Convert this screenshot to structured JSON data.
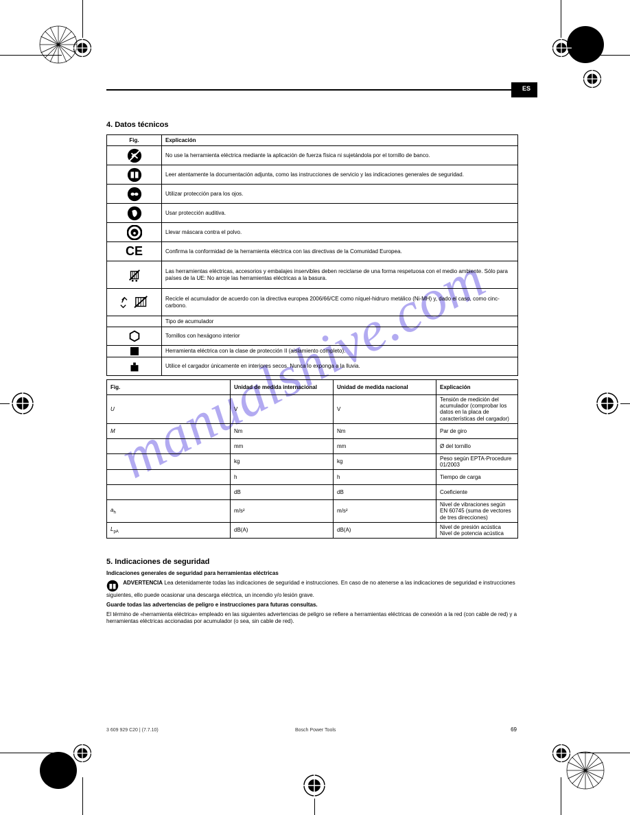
{
  "header": {
    "lang_tag": "ES"
  },
  "title_section": "4. Datos técnicos",
  "symbols_table": {
    "header": {
      "col1": "Fig.",
      "col2": "Explicación"
    },
    "rows": [
      {
        "icon": "no-hands",
        "text": "No use la herramienta eléctrica mediante la aplicación de fuerza física ni sujetándola por el tornillo de banco.",
        "tall": false
      },
      {
        "icon": "manual",
        "text": "Leer atentamente la documentación adjunta, como las instrucciones de servicio y las indicaciones generales de seguridad.",
        "tall": false
      },
      {
        "icon": "goggles",
        "text": "Utilizar protección para los ojos.",
        "tall": false
      },
      {
        "icon": "ear",
        "text": "Usar protección auditiva.",
        "tall": false
      },
      {
        "icon": "mask",
        "text": "Llevar máscara contra el polvo.",
        "tall": false
      },
      {
        "icon": "ce",
        "text": "Confirma la conformidad de la herramienta eléctrica con las directivas de la Comunidad Europea.",
        "tall": false
      },
      {
        "icon": "weee",
        "text": "Las herramientas eléctricas, accesorios y embalajes inservibles deben reciclarse de una forma respetuosa con el medio ambiente. Sólo para países de la UE: No arroje las herramientas eléctricas a la basura.",
        "tall": true
      },
      {
        "icon": "battery-recycle",
        "text": "Recicle el acumulador de acuerdo con la directiva europea 2006/66/CE como níquel-hidruro metálico (Ni-MH) y, dado el caso, como cinc-carbono.",
        "tall": true
      },
      {
        "icon": "",
        "text": "Tipo de acumulador",
        "thin": true
      },
      {
        "icon": "hex",
        "text": "Tornillos con hexágono interior",
        "thin": true
      },
      {
        "icon": "square",
        "text": "Herramienta eléctrica con la clase de protección II (aislamiento completo).",
        "thin": true
      },
      {
        "icon": "charger",
        "text": "Utilice el cargador únicamente en interiores secos. Nunca lo exponga a la lluvia.",
        "thin": true
      }
    ]
  },
  "specs_table": {
    "header": {
      "col1": "Fig.",
      "col2": "Unidad de medida internacional",
      "col3": "Unidad de medida nacional",
      "col4": "Explicación"
    },
    "rows": [
      {
        "sym": "U",
        "unit_intl": "V",
        "unit_nat": "V",
        "desc": "Tensión de medición del acumulador (comprobar los datos en la placa de características del cargador)"
      },
      {
        "sym": "M",
        "unit_intl": "Nm",
        "unit_nat": "Nm",
        "desc": "Par de giro"
      },
      {
        "sym": "",
        "unit_intl": "mm",
        "unit_nat": "mm",
        "desc": "Ø del tornillo"
      },
      {
        "sym": "",
        "unit_intl": "kg",
        "unit_nat": "kg",
        "desc": "Peso según EPTA-Procedure 01/2003"
      },
      {
        "sym": "",
        "unit_intl": "h",
        "unit_nat": "h",
        "desc": "Tiempo de carga"
      },
      {
        "sym": "",
        "unit_intl": "dB",
        "unit_nat": "dB",
        "desc": "Coeficiente"
      },
      {
        "sym": "a",
        "sub": "h",
        "unit_intl": "m/s²",
        "unit_nat": "m/s²",
        "desc": "Nivel de vibraciones según EN 60745 (suma de vectores de tres direcciones)"
      },
      {
        "sym": "L",
        "sub": "pA",
        "unit_intl": "dB(A)",
        "unit_nat": "dB(A)",
        "desc": "Nivel de presión acústica\nNivel de potencia acústica"
      }
    ]
  },
  "safety_section": {
    "title": "5. Indicaciones de seguridad",
    "heading": "Indicaciones generales de seguridad para herramientas eléctricas",
    "warn_label": "ADVERTENCIA",
    "warn_text": "Lea detenidamente todas las indicaciones de seguridad e instrucciones. En caso de no atenerse a las indicaciones de seguridad e instrucciones siguientes, ello puede ocasionar una descarga eléctrica, un incendio y/o lesión grave.",
    "keep_text": "Guarde todas las advertencias de peligro e instrucciones para futuras consultas.",
    "term_text": "El término de «herramienta eléctrica» empleado en las siguientes advertencias de peligro se refiere a herramientas eléctricas de conexión a la red (con cable de red) y a herramientas eléctricas accionadas por acumulador (o sea, sin cable de red)."
  },
  "footer": {
    "doc_ref": "3 609 929 C20 | (7.7.10)",
    "company": "Bosch Power Tools",
    "page_number": "69"
  },
  "registration_marks": {
    "crop_color": "#000000"
  },
  "watermark": {
    "text": "manualshive.com",
    "color": "rgba(115,100,230,0.55)"
  }
}
